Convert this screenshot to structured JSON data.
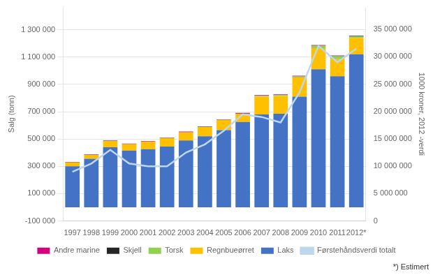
{
  "chart_data": {
    "type": "bar",
    "categories": [
      "1997",
      "1998",
      "1999",
      "2000",
      "2001",
      "2002",
      "2003",
      "2004",
      "2005",
      "2006",
      "2007",
      "2008",
      "2009",
      "2010",
      "2011",
      "2012*"
    ],
    "series": [
      {
        "name": "Laks",
        "color": "#4472C4",
        "values": [
          300000,
          355000,
          440000,
          415000,
          425000,
          445000,
          490000,
          520000,
          565000,
          625000,
          680000,
          685000,
          810000,
          1010000,
          960000,
          1120000
        ]
      },
      {
        "name": "Regnbueørret",
        "color": "#FFC000",
        "values": [
          28000,
          28000,
          45000,
          48000,
          55000,
          62000,
          60000,
          68000,
          75000,
          60000,
          130000,
          130000,
          140000,
          155000,
          125000,
          120000
        ]
      },
      {
        "name": "Torsk",
        "color": "#92D050",
        "values": [
          0,
          0,
          0,
          0,
          0,
          0,
          0,
          0,
          0,
          0,
          6000,
          6000,
          8000,
          18000,
          22000,
          12000
        ]
      },
      {
        "name": "Skjell",
        "color": "#262626",
        "values": [
          2000,
          2000,
          2000,
          2000,
          2000,
          2000,
          2000,
          2000,
          2000,
          2000,
          2000,
          2000,
          2000,
          2000,
          2000,
          2000
        ]
      },
      {
        "name": "Andre marine",
        "color": "#D9007E",
        "values": [
          2000,
          2000,
          2000,
          2000,
          2000,
          2000,
          2000,
          2000,
          2000,
          4000,
          4000,
          4000,
          3000,
          3000,
          3000,
          3000
        ]
      },
      {
        "name": "Førstehåndsverdi totalt",
        "type": "line",
        "axis": "y2",
        "color": "#BDD7EE",
        "values": [
          9000000,
          10500000,
          13000000,
          10500000,
          10000000,
          10000000,
          12500000,
          14000000,
          16500000,
          19500000,
          19000000,
          18000000,
          23500000,
          32000000,
          29000000,
          31500000
        ]
      }
    ],
    "stacked": true,
    "ylabel": "Salg (tonn)",
    "y2label": "1000 kroner, 2012 -verdi",
    "ylim": [
      -100000,
      1466666
    ],
    "yticks": [
      {
        "value": -100000,
        "label": "-100 000"
      },
      {
        "value": 100000,
        "label": "100 000"
      },
      {
        "value": 300000,
        "label": "300 000"
      },
      {
        "value": 500000,
        "label": "500 000"
      },
      {
        "value": 700000,
        "label": "700 000"
      },
      {
        "value": 900000,
        "label": "900 000"
      },
      {
        "value": 1100000,
        "label": "1 100 000"
      },
      {
        "value": 1300000,
        "label": "1 300 000"
      }
    ],
    "y2lim": [
      0,
      39111111
    ],
    "y2ticks": [
      0,
      {
        "value": 5000000,
        "label": "5 000 000"
      },
      {
        "value": 10000000,
        "label": "10 000 000"
      },
      {
        "value": 15000000,
        "label": "15 000 000"
      },
      {
        "value": 20000000,
        "label": "20 000 000"
      },
      {
        "value": 25000000,
        "label": "25 000 000"
      },
      {
        "value": 30000000,
        "label": "30 000 000"
      },
      {
        "value": 35000000,
        "label": "35 000 000"
      }
    ],
    "grid": true,
    "legend": "bottom",
    "annotations": [
      "*) Estimert"
    ]
  }
}
